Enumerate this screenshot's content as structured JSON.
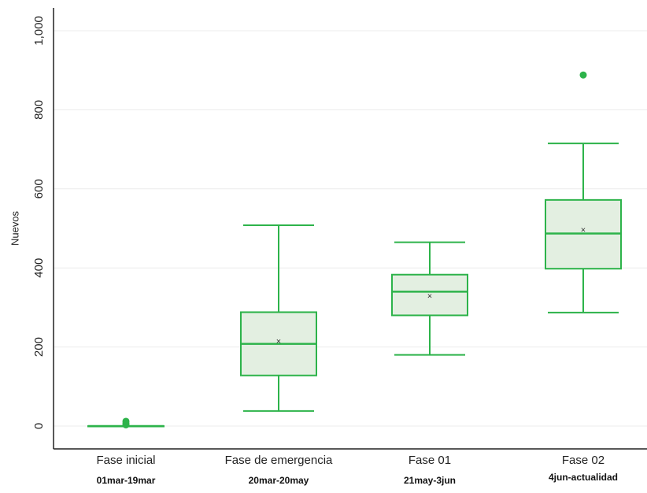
{
  "chart_data": {
    "type": "box",
    "ylabel": "Nuevos",
    "ylim": [
      -50,
      1050
    ],
    "yticks": [
      0,
      200,
      400,
      600,
      800,
      1000
    ],
    "ytick_labels": [
      "0",
      "200",
      "400",
      "600",
      "800",
      "1,000"
    ],
    "grid": true,
    "series_color": "#2db34a",
    "fill_color": "#e3efe1",
    "categories": [
      "Fase inicial",
      "Fase de emergencia",
      "Fase 01",
      "Fase 02"
    ],
    "sublabels": [
      "01mar-19mar",
      "20mar-20may",
      "21may-3jun",
      "4jun-actualidad"
    ],
    "boxes": [
      {
        "min": 0,
        "q1": 0,
        "median": 0,
        "q3": 0,
        "max": 0,
        "mean": 0,
        "outliers": [
          3,
          7,
          12
        ]
      },
      {
        "min": 38,
        "q1": 128,
        "median": 208,
        "q3": 288,
        "max": 508,
        "mean": 213,
        "outliers": []
      },
      {
        "min": 180,
        "q1": 280,
        "median": 340,
        "q3": 383,
        "max": 465,
        "mean": 328,
        "outliers": []
      },
      {
        "min": 287,
        "q1": 398,
        "median": 487,
        "q3": 572,
        "max": 715,
        "mean": 495,
        "outliers": [
          888
        ]
      }
    ]
  }
}
